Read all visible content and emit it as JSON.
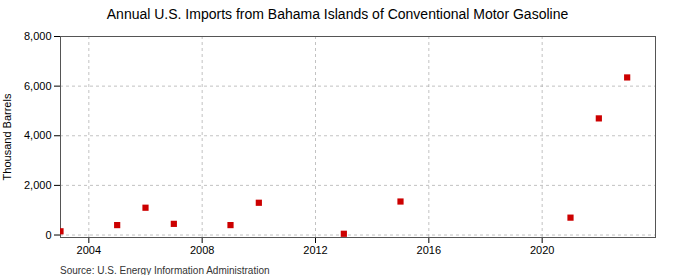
{
  "chart_data": {
    "type": "scatter",
    "title": "Annual U.S. Imports from Bahama Islands of Conventional Motor Gasoline",
    "ylabel": "Thousand Barrels",
    "source": "Source: U.S. Energy Information Administration",
    "x": [
      2003,
      2005,
      2006,
      2007,
      2009,
      2010,
      2013,
      2015,
      2021,
      2022,
      2023
    ],
    "values": [
      150,
      400,
      1100,
      450,
      400,
      1300,
      50,
      1350,
      700,
      4700,
      6350
    ],
    "color": "#cc0000",
    "marker": "square",
    "xlim": [
      2003.0,
      2024.0
    ],
    "xticks": [
      2004,
      2008,
      2012,
      2016,
      2020
    ],
    "ylim": [
      -100,
      8000
    ],
    "yticks": [
      0,
      {
        "value": 2000,
        "label": "2,000"
      },
      {
        "value": 4000,
        "label": "4,000"
      },
      {
        "value": 6000,
        "label": "6,000"
      },
      {
        "value": 8000,
        "label": "8,000"
      }
    ],
    "grid": true
  }
}
